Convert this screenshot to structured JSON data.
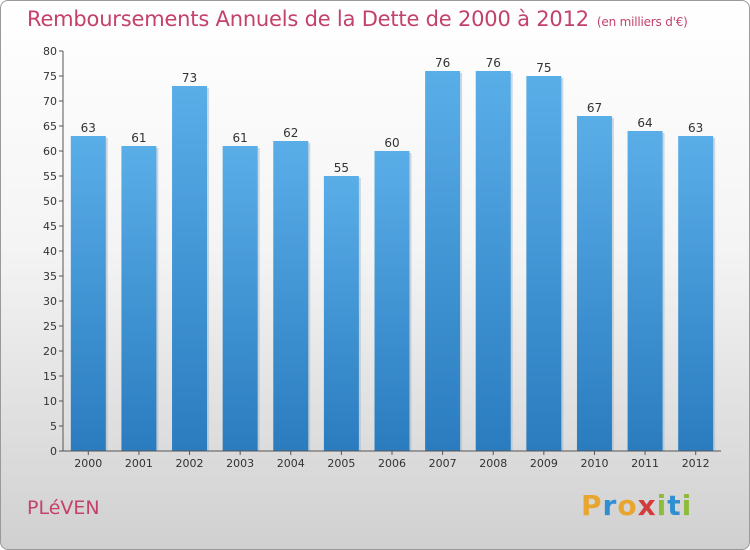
{
  "header": {
    "title": "Remboursements Annuels de la Dette de 2000 à 2012",
    "unit": "(en milliers d'€)"
  },
  "footer": {
    "commune": "PLéVEN",
    "logo_letters": [
      "P",
      "r",
      "o",
      "x",
      "i",
      "t",
      "i"
    ],
    "logo_colors": [
      "#e8a630",
      "#2f8fd0",
      "#e8a630",
      "#d43c3c",
      "#8dbb3a",
      "#2f8fd0",
      "#8dbb3a"
    ]
  },
  "chart_data": {
    "type": "bar",
    "categories": [
      "2000",
      "2001",
      "2002",
      "2003",
      "2004",
      "2005",
      "2006",
      "2007",
      "2008",
      "2009",
      "2010",
      "2011",
      "2012"
    ],
    "values": [
      63,
      61,
      73,
      61,
      62,
      55,
      60,
      76,
      76,
      75,
      67,
      64,
      63
    ],
    "title": "Remboursements Annuels de la Dette de 2000 à 2012",
    "ylim": [
      0,
      80
    ],
    "yticks": [
      0,
      5,
      10,
      15,
      20,
      25,
      30,
      35,
      40,
      45,
      50,
      55,
      60,
      65,
      70,
      75,
      80
    ],
    "grid": false,
    "bar_color_top": "#5aaee8",
    "bar_color_bottom": "#2a7cbf"
  }
}
